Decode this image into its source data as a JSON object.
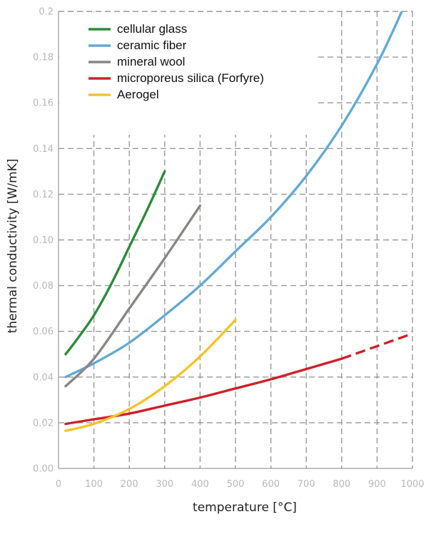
{
  "chart_data": {
    "type": "line",
    "xlabel": "temperature [°C]",
    "ylabel": "thermal conductivity [W/mK]",
    "xlim": [
      0,
      1000
    ],
    "ylim": [
      0,
      0.2
    ],
    "x_ticks": [
      "0",
      "100",
      "200",
      "300",
      "400",
      "500",
      "600",
      "700",
      "800",
      "900",
      "1000"
    ],
    "y_ticks": [
      "0.00",
      "0.02",
      "0.04",
      "0.06",
      "0.08",
      "0.10",
      "0.12",
      "0.14",
      "0.16",
      "0.18",
      "0.2"
    ],
    "grid": true,
    "legend_position": "top-left",
    "series": [
      {
        "name": "cellular glass",
        "color": "#2e8b3a",
        "x": [
          20,
          50,
          100,
          150,
          200,
          250,
          300
        ],
        "y": [
          0.05,
          0.056,
          0.067,
          0.081,
          0.097,
          0.113,
          0.13
        ]
      },
      {
        "name": "ceramic fiber",
        "color": "#64aad4",
        "x": [
          20,
          100,
          200,
          300,
          400,
          500,
          600,
          700,
          800,
          900,
          970
        ],
        "y": [
          0.04,
          0.046,
          0.055,
          0.067,
          0.08,
          0.095,
          0.11,
          0.128,
          0.15,
          0.177,
          0.2
        ]
      },
      {
        "name": "mineral wool",
        "color": "#8c8585",
        "x": [
          20,
          100,
          200,
          300,
          400
        ],
        "y": [
          0.036,
          0.048,
          0.07,
          0.092,
          0.115
        ]
      },
      {
        "name": "microporeus silica (Forfyre)",
        "color": "#d0202a",
        "x": [
          20,
          100,
          200,
          300,
          400,
          500,
          600,
          700,
          800
        ],
        "y": [
          0.0195,
          0.0215,
          0.024,
          0.0275,
          0.031,
          0.035,
          0.039,
          0.0435,
          0.048
        ],
        "extrapolated": {
          "x": [
            800,
            900,
            1000
          ],
          "y": [
            0.048,
            0.0535,
            0.059
          ]
        }
      },
      {
        "name": "Aerogel",
        "color": "#f5c428",
        "x": [
          20,
          100,
          200,
          300,
          400,
          500
        ],
        "y": [
          0.0165,
          0.0195,
          0.026,
          0.036,
          0.049,
          0.065
        ]
      }
    ]
  }
}
